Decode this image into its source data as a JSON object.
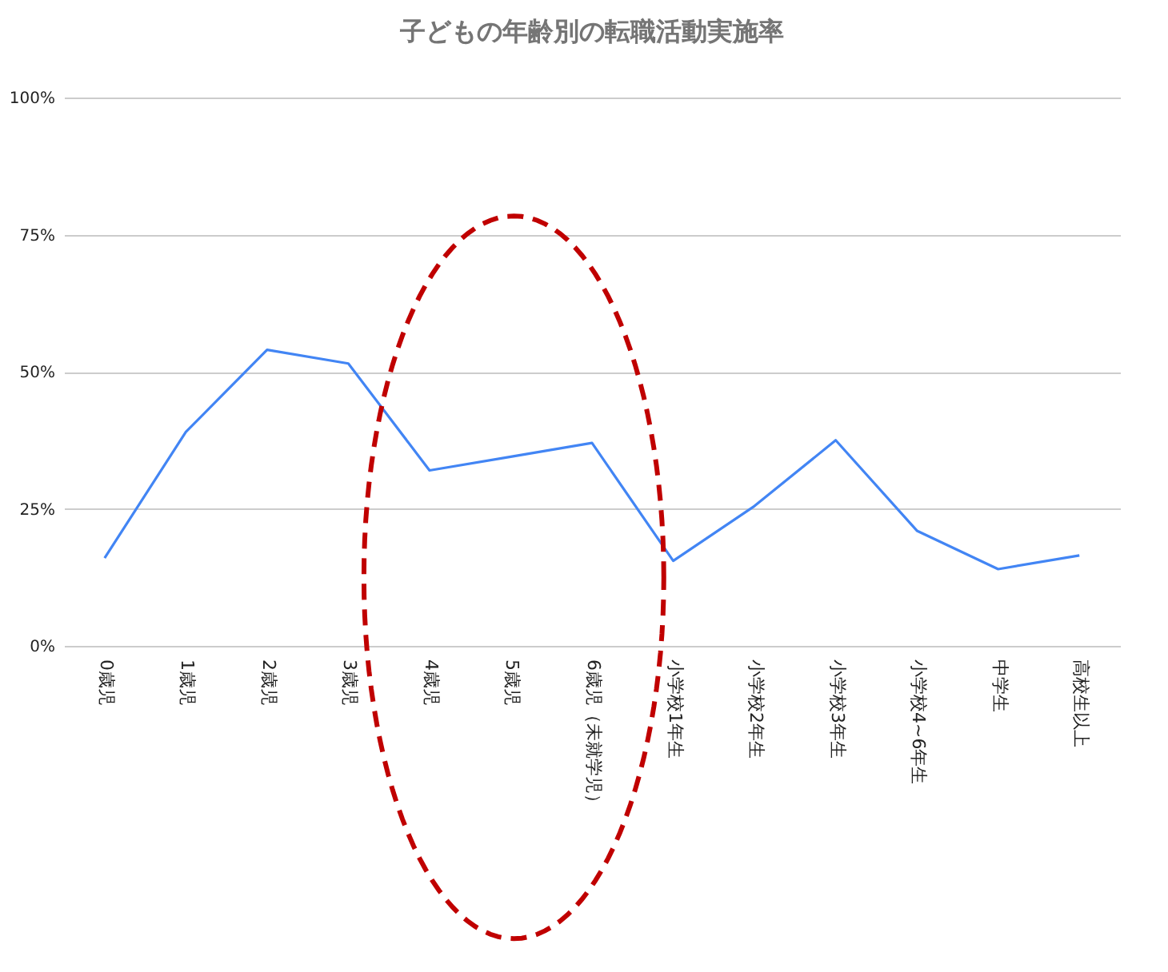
{
  "chart_data": {
    "type": "line",
    "title": "子どもの年齢別の転職活動実施率",
    "categories": [
      "0歳児",
      "1歳児",
      "2歳児",
      "3歳児",
      "4歳児",
      "5歳児",
      "6歳児（未就学児）",
      "小学校1年生",
      "小学校2年生",
      "小学校3年生",
      "小学校4~6年生",
      "中学生",
      "高校生以上"
    ],
    "series": [
      {
        "color": "#4285f4",
        "values": [
          16,
          39,
          54,
          51.5,
          32,
          34.5,
          37,
          15.5,
          25.5,
          37.5,
          21,
          14,
          16.5
        ]
      }
    ],
    "ylim": [
      0,
      100
    ],
    "yticks": [
      {
        "value": 0,
        "label": "0%"
      },
      {
        "value": 25,
        "label": "25%"
      },
      {
        "value": 50,
        "label": "50%"
      },
      {
        "value": 75,
        "label": "75%"
      },
      {
        "value": 100,
        "label": "100%"
      }
    ],
    "grid": "y",
    "marker": "none",
    "line_style": "solid"
  }
}
